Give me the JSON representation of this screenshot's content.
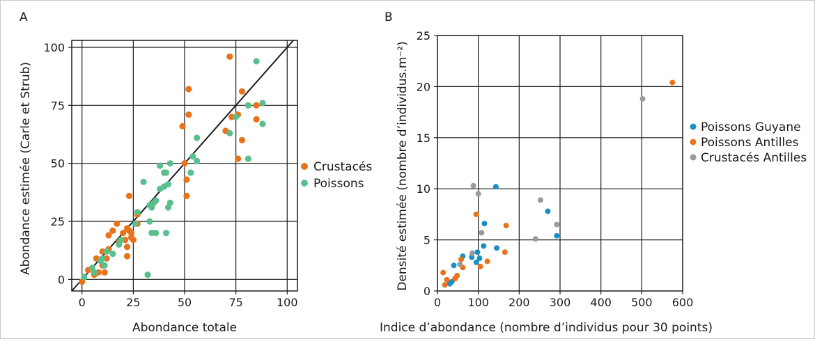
{
  "chart_data": [
    {
      "type": "scatter",
      "panel_label": "A",
      "xlabel": "Abondance totale",
      "ylabel": "Abondance estimée (Carle et Strub)",
      "xlim": [
        -5,
        105
      ],
      "ylim": [
        -5,
        103
      ],
      "xticks": [
        0,
        25,
        50,
        75,
        100
      ],
      "yticks": [
        0,
        25,
        50,
        75,
        100
      ],
      "grid": true,
      "reference_line": "y = x",
      "legend_position": "right",
      "series": [
        {
          "name": "Crustacés",
          "color": "#e8731a",
          "points": [
            [
              0,
              -1
            ],
            [
              3,
              4
            ],
            [
              6,
              2
            ],
            [
              7,
              9
            ],
            [
              8,
              3
            ],
            [
              10,
              6
            ],
            [
              10,
              12
            ],
            [
              11,
              3
            ],
            [
              12,
              9
            ],
            [
              13,
              13
            ],
            [
              13,
              19
            ],
            [
              15,
              21
            ],
            [
              17,
              24
            ],
            [
              18,
              16
            ],
            [
              20,
              20
            ],
            [
              21,
              17
            ],
            [
              22,
              22
            ],
            [
              22,
              10
            ],
            [
              22,
              14
            ],
            [
              23,
              36
            ],
            [
              23,
              21
            ],
            [
              24,
              20
            ],
            [
              24,
              18
            ],
            [
              25,
              17
            ],
            [
              27,
              28
            ],
            [
              27,
              24
            ],
            [
              49,
              66
            ],
            [
              50,
              50
            ],
            [
              51,
              36
            ],
            [
              51,
              43
            ],
            [
              52,
              82
            ],
            [
              52,
              71
            ],
            [
              70,
              64
            ],
            [
              72,
              96
            ],
            [
              73,
              70
            ],
            [
              76,
              71
            ],
            [
              76,
              52
            ],
            [
              78,
              60
            ],
            [
              78,
              81
            ],
            [
              85,
              75
            ],
            [
              85,
              69
            ]
          ]
        },
        {
          "name": "Poissons",
          "color": "#5bbf8d",
          "points": [
            [
              1,
              1
            ],
            [
              5,
              5
            ],
            [
              6,
              3
            ],
            [
              9,
              8
            ],
            [
              10,
              9
            ],
            [
              11,
              6
            ],
            [
              12,
              12
            ],
            [
              15,
              11
            ],
            [
              18,
              15
            ],
            [
              19,
              17
            ],
            [
              26,
              24
            ],
            [
              27,
              29
            ],
            [
              30,
              42
            ],
            [
              32,
              2
            ],
            [
              33,
              25
            ],
            [
              33,
              32
            ],
            [
              34,
              31
            ],
            [
              34,
              20
            ],
            [
              35,
              33
            ],
            [
              36,
              20
            ],
            [
              36,
              34
            ],
            [
              38,
              49
            ],
            [
              38,
              39
            ],
            [
              40,
              40
            ],
            [
              40,
              46
            ],
            [
              41,
              46
            ],
            [
              41,
              20
            ],
            [
              42,
              31
            ],
            [
              42,
              41
            ],
            [
              43,
              33
            ],
            [
              43,
              50
            ],
            [
              53,
              46
            ],
            [
              54,
              53
            ],
            [
              56,
              61
            ],
            [
              56,
              51
            ],
            [
              72,
              63
            ],
            [
              75,
              70
            ],
            [
              81,
              75
            ],
            [
              81,
              52
            ],
            [
              85,
              94
            ],
            [
              88,
              76
            ],
            [
              88,
              67
            ]
          ]
        }
      ]
    },
    {
      "type": "scatter",
      "panel_label": "B",
      "xlabel": "Indice d’abondance (nombre d’individus pour 30 points)",
      "ylabel": "Densité estimée (nombre d’individus.m⁻²)",
      "xlim": [
        0,
        600
      ],
      "ylim": [
        0,
        25
      ],
      "xticks": [
        0,
        100,
        200,
        300,
        400,
        500,
        600
      ],
      "yticks": [
        0,
        5,
        10,
        15,
        20,
        25
      ],
      "grid": true,
      "legend_position": "right",
      "series": [
        {
          "name": "Poissons Guyane",
          "color": "#1a8fc4",
          "points": [
            [
              30,
              0.7
            ],
            [
              35,
              0.9
            ],
            [
              40,
              2.5
            ],
            [
              62,
              3.4
            ],
            [
              84,
              3.3
            ],
            [
              95,
              2.8
            ],
            [
              98,
              3.8
            ],
            [
              103,
              3.2
            ],
            [
              113,
              4.4
            ],
            [
              115,
              6.6
            ],
            [
              143,
              10.2
            ],
            [
              145,
              4.2
            ],
            [
              270,
              7.8
            ],
            [
              292,
              5.4
            ]
          ]
        },
        {
          "name": "Poissons Antilles",
          "color": "#e8731a",
          "points": [
            [
              14,
              1.8
            ],
            [
              18,
              0.6
            ],
            [
              23,
              1.1
            ],
            [
              43,
              1.2
            ],
            [
              48,
              1.5
            ],
            [
              58,
              3.1
            ],
            [
              62,
              2.3
            ],
            [
              95,
              7.5
            ],
            [
              105,
              2.4
            ],
            [
              122,
              2.9
            ],
            [
              165,
              3.8
            ],
            [
              168,
              6.4
            ],
            [
              575,
              20.4
            ]
          ]
        },
        {
          "name": "Crustacés Antilles",
          "color": "#9b9b9b",
          "points": [
            [
              55,
              2.6
            ],
            [
              85,
              3.7
            ],
            [
              88,
              10.3
            ],
            [
              100,
              9.5
            ],
            [
              108,
              5.7
            ],
            [
              240,
              5.1
            ],
            [
              252,
              8.9
            ],
            [
              292,
              6.5
            ],
            [
              502,
              18.8
            ]
          ]
        }
      ]
    }
  ]
}
